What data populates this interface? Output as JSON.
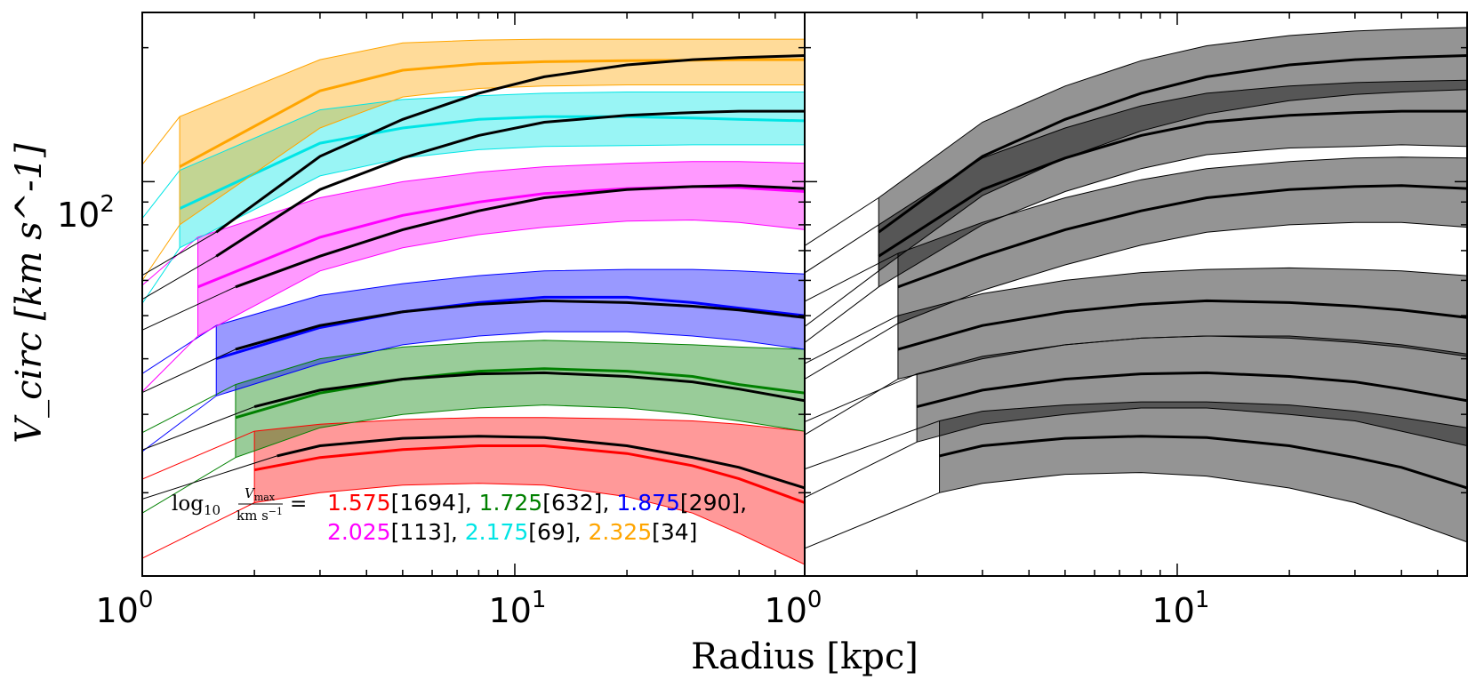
{
  "chart_data": {
    "type": "area",
    "xlabel": "Radius [kpc]",
    "ylabel": "V_circ [km s^-1]",
    "xscale": "log",
    "yscale": "log",
    "xlim": [
      1,
      60
    ],
    "ylim": [
      13,
      240
    ],
    "x_ticks": [
      {
        "base": "10",
        "exp": "0"
      },
      {
        "base": "10",
        "exp": "1"
      },
      {
        "base": "10",
        "exp": "0"
      }
    ],
    "x_ticks_right": [
      {
        "base": "10",
        "exp": "0"
      },
      {
        "base": "10",
        "exp": "1"
      }
    ],
    "y_ticks": [
      {
        "base": "10",
        "exp": "2"
      }
    ],
    "legend": {
      "prefix": "log",
      "prefix_sub": "10",
      "fraction_num": "V",
      "fraction_num_sub": "max",
      "fraction_den": "km s",
      "fraction_den_exp": "−1",
      "equals": "=",
      "placement": "bottom-left of left panel"
    },
    "bins": [
      {
        "name": "1.575",
        "count": "[1694]",
        "color": "#ff0000",
        "rmin": 2.0,
        "rstart": 2.3
      },
      {
        "name": "1.725",
        "count": "[632]",
        "color": "#008000",
        "rmin": 1.78,
        "rstart": 2.0
      },
      {
        "name": "1.875",
        "count": "[290]",
        "color": "#0000ff",
        "rmin": 1.58,
        "rstart": 1.78
      },
      {
        "name": "2.025",
        "count": "[113]",
        "color": "#ff00ff",
        "rmin": 1.41,
        "rstart": 1.58
      },
      {
        "name": "2.175",
        "count": "[69]",
        "color": "#00e5e5",
        "rmin": 1.26,
        "rstart": 1.41
      },
      {
        "name": "2.325",
        "count": "[34]",
        "color": "#ffa500",
        "rmin": 1.0,
        "rstart": 1.26
      }
    ],
    "series_left": [
      {
        "name": "1.575",
        "x": [
          2.0,
          3,
          5,
          8,
          12,
          20,
          30,
          40,
          60
        ],
        "median": [
          22.5,
          24.0,
          25.0,
          25.5,
          25.5,
          24.5,
          23.0,
          21.5,
          19.0
        ],
        "lower": [
          19.0,
          20.0,
          20.8,
          21.0,
          20.8,
          19.6,
          18.0,
          16.2,
          13.8
        ],
        "upper": [
          27.5,
          28.5,
          29.2,
          29.5,
          29.5,
          29.3,
          29.0,
          28.5,
          27.5
        ],
        "ref": [
          24.2,
          25.5,
          26.5,
          26.8,
          26.6,
          25.5,
          24.0,
          22.8,
          20.5
        ]
      },
      {
        "name": "1.725",
        "x": [
          1.78,
          3,
          5,
          8,
          12,
          20,
          30,
          40,
          60
        ],
        "median": [
          29.5,
          33.5,
          36.0,
          37.5,
          38.0,
          37.5,
          36.5,
          35.0,
          33.5
        ],
        "lower": [
          24.0,
          28.0,
          30.0,
          31.0,
          31.5,
          31.0,
          30.0,
          29.0,
          27.5
        ],
        "upper": [
          35.0,
          40.0,
          42.5,
          43.5,
          44.0,
          43.5,
          43.0,
          42.5,
          42.0
        ],
        "ref": [
          31.2,
          34.0,
          36.0,
          37.0,
          37.2,
          36.5,
          35.5,
          34.2,
          32.2
        ]
      },
      {
        "name": "1.875",
        "x": [
          1.58,
          3,
          5,
          8,
          12,
          20,
          30,
          40,
          60
        ],
        "median": [
          40.0,
          47.0,
          51.0,
          53.5,
          55.0,
          55.0,
          53.5,
          52.0,
          50.0
        ],
        "lower": [
          33.0,
          39.0,
          43.0,
          45.0,
          46.0,
          46.0,
          45.0,
          44.0,
          42.0
        ],
        "upper": [
          47.5,
          55.5,
          59.0,
          61.5,
          63.0,
          63.5,
          63.5,
          63.0,
          62.0
        ],
        "ref": [
          42.0,
          47.5,
          51.0,
          53.0,
          54.0,
          53.5,
          52.5,
          51.5,
          49.5
        ]
      },
      {
        "name": "2.025",
        "x": [
          1.41,
          3,
          5,
          8,
          12,
          20,
          30,
          40,
          60
        ],
        "median": [
          58.0,
          75.0,
          84.0,
          90.0,
          94.0,
          96.5,
          97.5,
          97.0,
          95.0
        ],
        "lower": [
          45.0,
          63.0,
          71.0,
          76.0,
          79.0,
          81.5,
          82.0,
          81.0,
          78.0
        ],
        "upper": [
          75.0,
          92.0,
          100.0,
          105.0,
          108.0,
          110.0,
          111.0,
          111.0,
          110.0
        ],
        "ref": [
          54.0,
          68.0,
          78.0,
          86.0,
          92.0,
          96.0,
          97.5,
          98.0,
          96.5
        ]
      },
      {
        "name": "2.175",
        "x": [
          1.26,
          3,
          5,
          8,
          12,
          20,
          30,
          40,
          60
        ],
        "median": [
          87.0,
          122.0,
          132.0,
          138.0,
          140.0,
          140.0,
          139.0,
          138.0,
          137.0
        ],
        "lower": [
          71.0,
          103.0,
          113.0,
          118.0,
          120.0,
          120.5,
          121.0,
          121.0,
          121.0
        ],
        "upper": [
          106.0,
          145.0,
          153.0,
          156.0,
          158.0,
          159.0,
          159.0,
          159.0,
          159.0
        ],
        "ref": [
          68.0,
          96.0,
          113.0,
          127.0,
          136.0,
          141.0,
          143.0,
          144.0,
          144.0
        ]
      },
      {
        "name": "2.325",
        "x": [
          1.26,
          3,
          5,
          8,
          12,
          20,
          30,
          40,
          60
        ],
        "median": [
          108.0,
          160.0,
          178.0,
          184.0,
          186.0,
          187.0,
          187.5,
          188.0,
          188.0
        ],
        "lower": [
          80.0,
          132.0,
          155.0,
          162.0,
          164.0,
          165.0,
          165.0,
          165.0,
          165.0
        ],
        "upper": [
          140.0,
          188.0,
          205.0,
          208.0,
          209.0,
          209.0,
          209.0,
          209.0,
          209.0
        ],
        "ref": [
          77.0,
          114.0,
          138.0,
          158.0,
          172.0,
          183.0,
          188.0,
          190.0,
          192.0
        ]
      }
    ],
    "series_right": [
      {
        "name": "1.575",
        "x": [
          2.3,
          3,
          5,
          8,
          12,
          20,
          30,
          40,
          60
        ],
        "median": [
          24.2,
          25.5,
          26.5,
          26.8,
          26.6,
          25.5,
          24.0,
          22.8,
          20.5
        ],
        "lower": [
          20.0,
          21.0,
          22.0,
          22.2,
          21.8,
          20.5,
          19.0,
          17.5,
          15.5
        ],
        "upper": [
          29.0,
          30.5,
          31.5,
          32.0,
          32.0,
          31.5,
          30.5,
          29.5,
          28.0
        ]
      },
      {
        "name": "1.725",
        "x": [
          2.0,
          3,
          5,
          8,
          12,
          20,
          30,
          40,
          60
        ],
        "median": [
          31.2,
          34.0,
          36.0,
          37.0,
          37.2,
          36.5,
          35.5,
          34.2,
          32.2
        ],
        "lower": [
          26.0,
          28.5,
          30.0,
          31.0,
          31.0,
          30.0,
          29.0,
          27.5,
          25.5
        ],
        "upper": [
          37.0,
          40.5,
          43.0,
          44.5,
          45.0,
          45.0,
          44.0,
          43.0,
          41.0
        ]
      },
      {
        "name": "1.875",
        "x": [
          1.78,
          3,
          5,
          8,
          12,
          20,
          30,
          40,
          60
        ],
        "median": [
          42.0,
          47.5,
          51.0,
          53.0,
          54.0,
          53.5,
          52.5,
          51.5,
          49.5
        ],
        "lower": [
          36.0,
          40.0,
          43.0,
          44.5,
          45.0,
          44.5,
          43.5,
          42.5,
          40.5
        ],
        "upper": [
          50.0,
          56.0,
          60.0,
          62.5,
          63.5,
          64.0,
          63.5,
          63.0,
          61.5
        ]
      },
      {
        "name": "2.025",
        "x": [
          1.78,
          3,
          5,
          8,
          12,
          20,
          30,
          40,
          60
        ],
        "median": [
          58.0,
          68.0,
          78.0,
          86.0,
          92.0,
          96.0,
          97.5,
          98.0,
          96.5
        ],
        "lower": [
          48.0,
          57.0,
          65.0,
          72.0,
          77.0,
          80.0,
          81.0,
          81.0,
          79.0
        ],
        "upper": [
          69.0,
          81.0,
          92.0,
          101.0,
          107.0,
          111.0,
          113.0,
          113.5,
          113.0
        ]
      },
      {
        "name": "2.175",
        "x": [
          1.58,
          3,
          5,
          8,
          12,
          20,
          30,
          40,
          60
        ],
        "median": [
          68.0,
          96.0,
          113.0,
          127.0,
          136.0,
          141.0,
          143.0,
          144.0,
          144.0
        ],
        "lower": [
          58.0,
          80.0,
          95.0,
          107.0,
          115.0,
          119.0,
          120.0,
          121.0,
          120.0
        ],
        "upper": [
          80.0,
          113.0,
          132.0,
          148.0,
          158.0,
          164.0,
          167.0,
          168.0,
          169.0
        ]
      },
      {
        "name": "2.325",
        "x": [
          1.58,
          3,
          5,
          8,
          12,
          20,
          30,
          40,
          60
        ],
        "median": [
          77.0,
          114.0,
          138.0,
          158.0,
          172.0,
          183.0,
          188.0,
          190.0,
          192.0
        ],
        "lower": [
          63.0,
          93.0,
          113.0,
          130.0,
          142.0,
          152.0,
          157.0,
          159.0,
          161.0
        ],
        "upper": [
          92.0,
          136.0,
          164.0,
          187.0,
          202.0,
          213.0,
          218.0,
          220.0,
          222.0
        ]
      }
    ]
  }
}
